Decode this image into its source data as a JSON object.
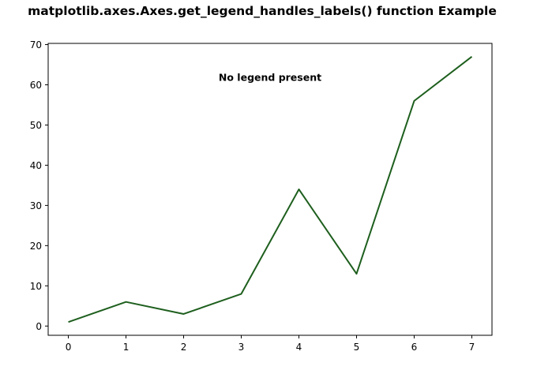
{
  "chart_data": {
    "type": "line",
    "title": "matplotlib.axes.Axes.get_legend_handles_labels() function Example",
    "xlabel": "",
    "ylabel": "",
    "x": [
      0,
      1,
      2,
      3,
      4,
      5,
      6,
      7
    ],
    "series": [
      {
        "values": [
          1,
          6,
          3,
          8,
          34,
          13,
          56,
          67
        ],
        "color": "#1e5f1e"
      }
    ],
    "xlim": [
      -0.35,
      7.35
    ],
    "ylim": [
      -2.3,
      70.3
    ],
    "xticks": [
      0,
      1,
      2,
      3,
      4,
      5,
      6,
      7
    ],
    "yticks": [
      0,
      10,
      20,
      30,
      40,
      50,
      60,
      70
    ],
    "grid": false,
    "legend": "none",
    "annotations": [
      {
        "text": "No legend present",
        "x": 3.5,
        "y": 61
      }
    ]
  }
}
